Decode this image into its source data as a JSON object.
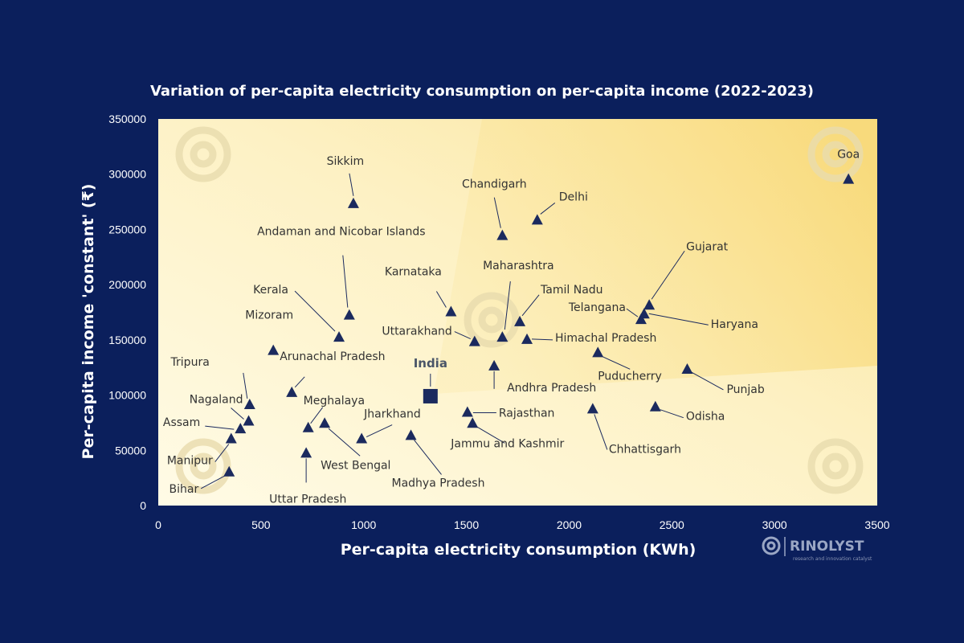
{
  "chart_data": {
    "type": "scatter",
    "title": "Variation of per-capita electricity consumption on per-capita income (2022-2023)",
    "xlabel": "Per-capita electricity consumption (KWh)",
    "ylabel": "Per-capita income 'constant'  (₹)",
    "xlim": [
      0,
      3500
    ],
    "ylim": [
      0,
      350000
    ],
    "xticks": [
      0,
      500,
      1000,
      1500,
      2000,
      2500,
      3000,
      3500
    ],
    "yticks": [
      0,
      50000,
      100000,
      150000,
      200000,
      250000,
      300000,
      350000
    ],
    "grid": false,
    "points": [
      {
        "label": "Goa",
        "x": 3360,
        "y": 295000
      },
      {
        "label": "Sikkim",
        "x": 950,
        "y": 273000
      },
      {
        "label": "Chandigarh",
        "x": 1675,
        "y": 244000
      },
      {
        "label": "Delhi",
        "x": 1845,
        "y": 258000
      },
      {
        "label": "Gujarat",
        "x": 2390,
        "y": 181000
      },
      {
        "label": "Haryana",
        "x": 2365,
        "y": 173000
      },
      {
        "label": "Telangana",
        "x": 2350,
        "y": 168000
      },
      {
        "label": "Andaman and Nicobar Islands",
        "x": 930,
        "y": 172000
      },
      {
        "label": "Karnataka",
        "x": 1425,
        "y": 175000
      },
      {
        "label": "Maharashtra",
        "x": 1675,
        "y": 152000
      },
      {
        "label": "Tamil Nadu",
        "x": 1760,
        "y": 166000
      },
      {
        "label": "Himachal Pradesh",
        "x": 1795,
        "y": 150000
      },
      {
        "label": "Kerala",
        "x": 880,
        "y": 152000
      },
      {
        "label": "Uttarakhand",
        "x": 1540,
        "y": 148000
      },
      {
        "label": "Mizoram",
        "x": 560,
        "y": 140000
      },
      {
        "label": "Puducherry",
        "x": 2140,
        "y": 138000
      },
      {
        "label": "Andhra Pradesh",
        "x": 1635,
        "y": 126000
      },
      {
        "label": "Punjab",
        "x": 2575,
        "y": 123000
      },
      {
        "label": "Arunachal Pradesh",
        "x": 650,
        "y": 102000
      },
      {
        "label": "Tripura",
        "x": 445,
        "y": 91000
      },
      {
        "label": "Odisha",
        "x": 2420,
        "y": 89000
      },
      {
        "label": "Chhattisgarh",
        "x": 2115,
        "y": 87000
      },
      {
        "label": "Rajasthan",
        "x": 1505,
        "y": 84000
      },
      {
        "label": "Nagaland",
        "x": 440,
        "y": 76000
      },
      {
        "label": "Jammu and Kashmir",
        "x": 1530,
        "y": 74000
      },
      {
        "label": "West Bengal",
        "x": 810,
        "y": 74000
      },
      {
        "label": "Meghalaya",
        "x": 730,
        "y": 70000
      },
      {
        "label": "Assam",
        "x": 400,
        "y": 69000
      },
      {
        "label": "Madhya Pradesh",
        "x": 1230,
        "y": 63000
      },
      {
        "label": "Jharkhand",
        "x": 990,
        "y": 60000
      },
      {
        "label": "Manipur",
        "x": 355,
        "y": 60000
      },
      {
        "label": "Uttar Pradesh",
        "x": 720,
        "y": 47000
      },
      {
        "label": "Bihar",
        "x": 345,
        "y": 30000
      }
    ],
    "highlight": {
      "label": "India",
      "x": 1325,
      "y": 99000,
      "marker": "square"
    },
    "marker_color": "#1b2a5e"
  },
  "brand": {
    "name": "RINOLYST",
    "tagline": "research and innovation catalyst"
  }
}
